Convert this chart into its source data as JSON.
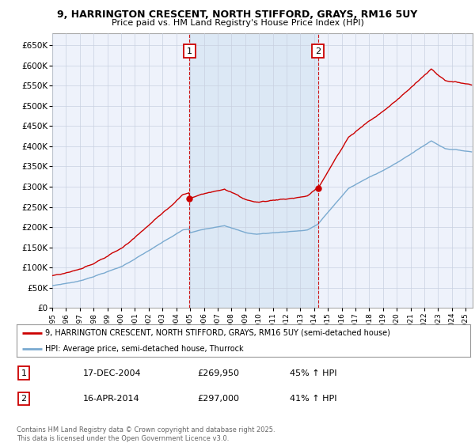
{
  "title": "9, HARRINGTON CRESCENT, NORTH STIFFORD, GRAYS, RM16 5UY",
  "subtitle": "Price paid vs. HM Land Registry's House Price Index (HPI)",
  "ylim": [
    0,
    680000
  ],
  "yticks": [
    0,
    50000,
    100000,
    150000,
    200000,
    250000,
    300000,
    350000,
    400000,
    450000,
    500000,
    550000,
    600000,
    650000
  ],
  "ytick_labels": [
    "£0",
    "£50K",
    "£100K",
    "£150K",
    "£200K",
    "£250K",
    "£300K",
    "£350K",
    "£400K",
    "£450K",
    "£500K",
    "£550K",
    "£600K",
    "£650K"
  ],
  "xlim_start": 1995.0,
  "xlim_end": 2025.5,
  "sale1_x": 2004.96,
  "sale1_y": 269950,
  "sale1_label": "1",
  "sale1_date": "17-DEC-2004",
  "sale1_price": "£269,950",
  "sale1_hpi": "45% ↑ HPI",
  "sale2_x": 2014.29,
  "sale2_y": 297000,
  "sale2_label": "2",
  "sale2_date": "16-APR-2014",
  "sale2_price": "£297,000",
  "sale2_hpi": "41% ↑ HPI",
  "legend_line1": "9, HARRINGTON CRESCENT, NORTH STIFFORD, GRAYS, RM16 5UY (semi-detached house)",
  "legend_line2": "HPI: Average price, semi-detached house, Thurrock",
  "footer": "Contains HM Land Registry data © Crown copyright and database right 2025.\nThis data is licensed under the Open Government Licence v3.0.",
  "bg_color": "#eef2fb",
  "plot_bg": "#ffffff",
  "grid_color": "#c8d0e0",
  "red_line_color": "#cc0000",
  "blue_line_color": "#7aaad0",
  "vline_color": "#cc0000",
  "highlight_color": "#dce8f5"
}
